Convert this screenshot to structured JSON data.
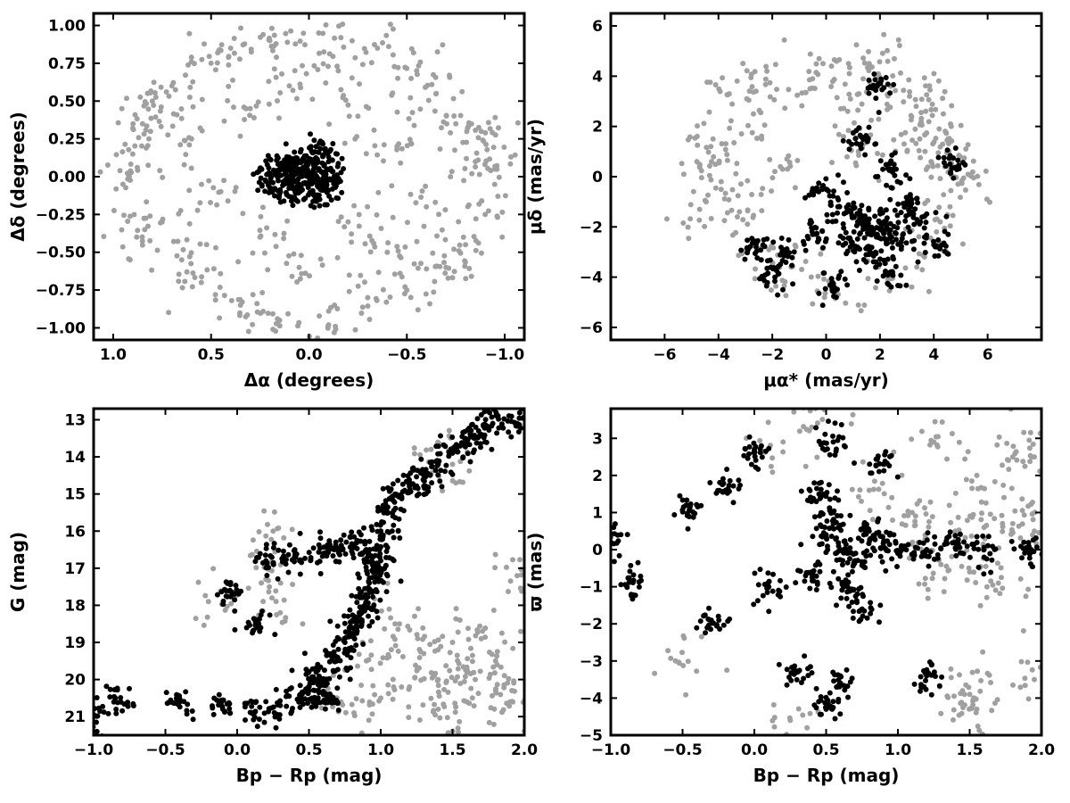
{
  "colors": {
    "field": "#a0a0a0",
    "member": "#000000",
    "frame": "#000000",
    "background": "#ffffff"
  },
  "chart_data": [
    {
      "id": "panel-sky",
      "type": "scatter",
      "xlabel": "Δα (degrees)",
      "ylabel": "Δδ (degrees)",
      "xlim": [
        1.1,
        -1.1
      ],
      "ylim": [
        -1.08,
        1.08
      ],
      "x_reversed": true,
      "xticks": [
        1.0,
        0.5,
        0.0,
        -0.5,
        -1.0
      ],
      "xtick_labels": [
        "1.0",
        "0.5",
        "0.0",
        "−0.5",
        "−1.0"
      ],
      "yticks": [
        1.0,
        0.75,
        0.5,
        0.25,
        0.0,
        -0.25,
        -0.5,
        -0.75,
        -1.0
      ],
      "ytick_labels": [
        "1.00",
        "0.75",
        "0.50",
        "0.25",
        "0.00",
        "−0.25",
        "−0.50",
        "−0.75",
        "−1.00"
      ],
      "grid": false,
      "series": [
        {
          "role": "field",
          "color": "#a0a0a0",
          "points": [
            [
              0.9,
              0.15
            ],
            [
              0.85,
              0.35
            ],
            [
              0.8,
              0.5
            ],
            [
              0.75,
              -0.3
            ],
            [
              0.7,
              0.6
            ],
            [
              0.65,
              -0.55
            ],
            [
              0.6,
              0.25
            ],
            [
              0.55,
              -0.7
            ],
            [
              0.5,
              0.75
            ],
            [
              0.45,
              -0.1
            ],
            [
              0.4,
              0.85
            ],
            [
              0.35,
              -0.85
            ],
            [
              0.3,
              0.45
            ],
            [
              0.25,
              -0.4
            ],
            [
              0.2,
              0.9
            ],
            [
              0.15,
              -0.95
            ],
            [
              0.1,
              0.6
            ],
            [
              0.05,
              -0.6
            ],
            [
              -0.05,
              0.95
            ],
            [
              -0.1,
              -0.98
            ],
            [
              -0.15,
              0.7
            ],
            [
              -0.2,
              -0.3
            ],
            [
              -0.25,
              0.4
            ],
            [
              -0.3,
              -0.8
            ],
            [
              -0.35,
              0.85
            ],
            [
              -0.4,
              -0.5
            ],
            [
              -0.45,
              0.2
            ],
            [
              -0.5,
              -0.75
            ],
            [
              -0.55,
              0.7
            ],
            [
              -0.6,
              -0.2
            ],
            [
              -0.65,
              0.55
            ],
            [
              -0.7,
              -0.6
            ],
            [
              -0.75,
              0.35
            ],
            [
              -0.8,
              -0.45
            ],
            [
              -0.85,
              0.1
            ],
            [
              -0.9,
              -0.25
            ],
            [
              -0.95,
              0.05
            ],
            [
              0.95,
              -0.05
            ],
            [
              0.88,
              -0.4
            ],
            [
              -0.88,
              0.3
            ]
          ]
        },
        {
          "role": "member",
          "color": "#000000",
          "points": [
            [
              0.05,
              0.05
            ],
            [
              -0.03,
              0.02
            ],
            [
              0.02,
              -0.04
            ],
            [
              -0.06,
              -0.05
            ],
            [
              0.1,
              0.08
            ],
            [
              -0.1,
              0.1
            ],
            [
              0.07,
              -0.1
            ],
            [
              -0.08,
              -0.09
            ],
            [
              0.0,
              0.12
            ],
            [
              0.12,
              -0.02
            ],
            [
              -0.13,
              0.0
            ],
            [
              0.15,
              0.05
            ],
            [
              0.2,
              0.02
            ],
            [
              -0.05,
              0.16
            ],
            [
              0.18,
              -0.08
            ]
          ]
        }
      ]
    },
    {
      "id": "panel-pm",
      "type": "scatter",
      "xlabel": "μα* (mas/yr)",
      "ylabel": "μδ (mas/yr)",
      "xlim": [
        -8.0,
        8.0
      ],
      "ylim": [
        -6.5,
        6.5
      ],
      "xticks": [
        -6,
        -4,
        -2,
        0,
        2,
        4,
        6
      ],
      "xtick_labels": [
        "−6",
        "−4",
        "−2",
        "0",
        "2",
        "4",
        "6"
      ],
      "yticks": [
        6,
        4,
        2,
        0,
        -2,
        -4,
        -6
      ],
      "ytick_labels": [
        "6",
        "4",
        "2",
        "0",
        "−2",
        "−4",
        "−6"
      ],
      "grid": false,
      "series": [
        {
          "role": "field",
          "color": "#a0a0a0",
          "points": [
            [
              -4.8,
              0.6
            ],
            [
              -4.2,
              1.5
            ],
            [
              -3.6,
              3.3
            ],
            [
              -3.3,
              -1.6
            ],
            [
              -2.7,
              2.5
            ],
            [
              -2.2,
              4.2
            ],
            [
              -1.7,
              0.4
            ],
            [
              -1.3,
              -3.6
            ],
            [
              -0.6,
              3.5
            ],
            [
              0.2,
              4.4
            ],
            [
              0.8,
              2.6
            ],
            [
              1.6,
              4.5
            ],
            [
              2.4,
              3.6
            ],
            [
              3.1,
              3.2
            ],
            [
              3.7,
              2.6
            ],
            [
              4.2,
              1.9
            ],
            [
              4.6,
              0.8
            ],
            [
              4.9,
              -0.3
            ],
            [
              4.6,
              -1.2
            ],
            [
              4.1,
              -2.2
            ],
            [
              -4.7,
              -1.3
            ],
            [
              -3.9,
              -0.2
            ],
            [
              -2.4,
              -3.3
            ],
            [
              0.3,
              -4.6
            ],
            [
              2.3,
              -4.1
            ],
            [
              3.9,
              0.6
            ],
            [
              2.9,
              1.3
            ],
            [
              1.2,
              1.0
            ]
          ]
        },
        {
          "role": "member",
          "color": "#000000",
          "points": [
            [
              1.5,
              -2.0
            ],
            [
              1.9,
              -2.3
            ],
            [
              1.2,
              -1.5
            ],
            [
              2.2,
              -1.8
            ],
            [
              0.9,
              -2.8
            ],
            [
              2.6,
              -2.5
            ],
            [
              1.6,
              -3.1
            ],
            [
              0.5,
              -1.2
            ],
            [
              3.0,
              -1.0
            ],
            [
              -0.5,
              -2.3
            ],
            [
              -1.5,
              -3.0
            ],
            [
              -2.6,
              -2.8
            ],
            [
              0.3,
              -4.4
            ],
            [
              2.4,
              -3.8
            ],
            [
              1.3,
              1.3
            ],
            [
              1.9,
              3.6
            ],
            [
              4.6,
              0.5
            ],
            [
              4.1,
              -2.8
            ],
            [
              0.0,
              -0.5
            ],
            [
              -1.9,
              -4.0
            ],
            [
              2.5,
              0.3
            ],
            [
              3.5,
              -1.8
            ]
          ]
        }
      ]
    },
    {
      "id": "panel-cmd",
      "type": "scatter",
      "xlabel": "Bp − Rp (mag)",
      "ylabel": "G (mag)",
      "xlim": [
        -1.0,
        2.0
      ],
      "ylim": [
        12.7,
        21.5
      ],
      "y_reversed": true,
      "xticks": [
        -1.0,
        -0.5,
        0.0,
        0.5,
        1.0,
        1.5,
        2.0
      ],
      "xtick_labels": [
        "−1.0",
        "−0.5",
        "0.0",
        "0.5",
        "1.0",
        "1.5",
        "2.0"
      ],
      "yticks": [
        21,
        20,
        19,
        18,
        17,
        16,
        15,
        14,
        13
      ],
      "ytick_labels": [
        "21",
        "20",
        "19",
        "18",
        "17",
        "16",
        "15",
        "14",
        "13"
      ],
      "grid": false,
      "series": [
        {
          "role": "field",
          "color": "#a0a0a0",
          "points": [
            [
              1.0,
              20.5
            ],
            [
              1.2,
              20.2
            ],
            [
              1.4,
              20.0
            ],
            [
              1.6,
              19.8
            ],
            [
              1.8,
              20.3
            ],
            [
              1.9,
              20.6
            ],
            [
              1.3,
              19.3
            ],
            [
              1.5,
              19.0
            ],
            [
              1.7,
              18.9
            ],
            [
              1.1,
              18.5
            ],
            [
              0.9,
              19.5
            ],
            [
              1.4,
              20.8
            ],
            [
              1.6,
              20.6
            ],
            [
              1.8,
              19.5
            ],
            [
              0.7,
              20.6
            ],
            [
              0.3,
              18.2
            ],
            [
              0.2,
              17.3
            ],
            [
              -0.2,
              17.9
            ],
            [
              1.95,
              17.2
            ],
            [
              0.25,
              16.0
            ],
            [
              1.35,
              13.8
            ],
            [
              1.5,
              14.2
            ]
          ]
        },
        {
          "role": "member",
          "color": "#000000",
          "points": [
            [
              0.5,
              20.3
            ],
            [
              0.6,
              20.0
            ],
            [
              0.55,
              19.8
            ],
            [
              0.45,
              20.6
            ],
            [
              0.65,
              20.5
            ],
            [
              0.7,
              19.4
            ],
            [
              0.75,
              19.0
            ],
            [
              0.8,
              18.6
            ],
            [
              0.85,
              18.2
            ],
            [
              0.9,
              17.8
            ],
            [
              0.92,
              17.4
            ],
            [
              0.95,
              17.0
            ],
            [
              1.0,
              16.8
            ],
            [
              0.7,
              16.5
            ],
            [
              0.8,
              16.4
            ],
            [
              0.9,
              16.5
            ],
            [
              0.6,
              16.6
            ],
            [
              0.4,
              16.7
            ],
            [
              0.2,
              16.8
            ],
            [
              1.0,
              16.0
            ],
            [
              1.05,
              15.5
            ],
            [
              1.1,
              15.0
            ],
            [
              1.2,
              14.8
            ],
            [
              1.3,
              14.5
            ],
            [
              1.4,
              14.2
            ],
            [
              1.5,
              13.9
            ],
            [
              1.6,
              13.6
            ],
            [
              1.7,
              13.4
            ],
            [
              1.78,
              13.1
            ],
            [
              1.95,
              13.1
            ],
            [
              0.3,
              20.7
            ],
            [
              0.1,
              20.9
            ],
            [
              -0.1,
              20.8
            ],
            [
              -0.4,
              20.6
            ],
            [
              -0.85,
              20.5
            ],
            [
              -1.0,
              21.0
            ],
            [
              -0.05,
              17.6
            ],
            [
              0.15,
              18.5
            ]
          ]
        }
      ]
    },
    {
      "id": "panel-plx",
      "type": "scatter",
      "xlabel": "Bp − Rp (mag)",
      "ylabel": "ϖ (mas)",
      "xlim": [
        -1.0,
        2.0
      ],
      "ylim": [
        -5.0,
        3.8
      ],
      "xticks": [
        -1.0,
        -0.5,
        0.0,
        0.5,
        1.0,
        1.5,
        2.0
      ],
      "xtick_labels": [
        "−1.0",
        "−0.5",
        "0.0",
        "0.5",
        "1.0",
        "1.5",
        "2.0"
      ],
      "yticks": [
        3,
        2,
        1,
        0,
        -1,
        -2,
        -3,
        -4,
        -5
      ],
      "ytick_labels": [
        "3",
        "2",
        "1",
        "0",
        "−1",
        "−2",
        "−3",
        "−4",
        "−5"
      ],
      "grid": false,
      "series": [
        {
          "role": "field",
          "color": "#a0a0a0",
          "points": [
            [
              1.2,
              0.3
            ],
            [
              1.4,
              0.5
            ],
            [
              1.6,
              0.6
            ],
            [
              1.8,
              0.7
            ],
            [
              1.95,
              0.5
            ],
            [
              1.3,
              -0.4
            ],
            [
              1.5,
              -0.6
            ],
            [
              1.7,
              -0.9
            ],
            [
              1.1,
              1.0
            ],
            [
              1.55,
              2.0
            ],
            [
              1.8,
              2.5
            ],
            [
              1.95,
              2.5
            ],
            [
              0.8,
              1.6
            ],
            [
              0.4,
              3.3
            ],
            [
              0.2,
              2.9
            ],
            [
              0.25,
              -4.6
            ],
            [
              1.55,
              -4.3
            ],
            [
              1.5,
              -3.9
            ],
            [
              1.95,
              -3.5
            ],
            [
              -0.55,
              -3.0
            ],
            [
              1.25,
              2.9
            ],
            [
              1.45,
              -3.8
            ]
          ]
        },
        {
          "role": "member",
          "color": "#000000",
          "points": [
            [
              0.6,
              0.0
            ],
            [
              0.5,
              0.4
            ],
            [
              0.7,
              -0.3
            ],
            [
              0.4,
              -0.6
            ],
            [
              0.8,
              0.5
            ],
            [
              0.55,
              1.0
            ],
            [
              0.65,
              -1.0
            ],
            [
              0.45,
              1.5
            ],
            [
              0.75,
              -1.6
            ],
            [
              0.9,
              0.2
            ],
            [
              1.0,
              -0.1
            ],
            [
              1.2,
              0.0
            ],
            [
              1.4,
              0.05
            ],
            [
              1.6,
              0.0
            ],
            [
              1.9,
              0.0
            ],
            [
              0.55,
              2.9
            ],
            [
              0.3,
              -3.3
            ],
            [
              0.5,
              -4.3
            ],
            [
              0.6,
              -3.6
            ],
            [
              0.0,
              2.7
            ],
            [
              -0.2,
              1.6
            ],
            [
              -0.45,
              1.1
            ],
            [
              -0.85,
              -0.85
            ],
            [
              -1.0,
              0.2
            ],
            [
              -0.3,
              -1.9
            ],
            [
              0.1,
              -1.0
            ],
            [
              1.2,
              -3.4
            ],
            [
              0.9,
              2.3
            ]
          ]
        }
      ]
    }
  ]
}
